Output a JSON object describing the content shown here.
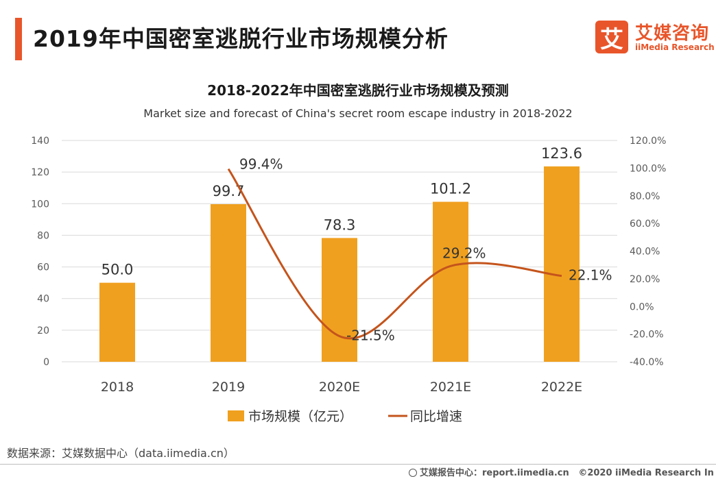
{
  "page": {
    "title": "2019年中国密室逃脱行业市场规模分析",
    "logo_mark": "艾",
    "logo_cn": "艾媒咨询",
    "logo_en": "iiMedia Research",
    "source": "数据来源：艾媒数据中心（data.iimedia.cn）",
    "footer_report": "艾媒报告中心：report.iimedia.cn",
    "footer_copyright": "©2020  iiMedia Research  In"
  },
  "colors": {
    "accent": "#e8552a",
    "bar": "#f0a01f",
    "line": "#c4541c",
    "grid": "#d9d9d9",
    "axis_text": "#595959"
  },
  "chart_data": {
    "type": "bar",
    "title": "2018-2022年中国密室逃脱行业市场规模及预测",
    "subtitle": "Market size and forecast of China's secret room escape industry in 2018-2022",
    "categories": [
      "2018",
      "2019",
      "2020E",
      "2021E",
      "2022E"
    ],
    "series": [
      {
        "name": "市场规模（亿元）",
        "type": "bar",
        "axis": "left",
        "values": [
          50.0,
          99.7,
          78.3,
          101.2,
          123.6
        ],
        "labels": [
          "50.0",
          "99.7",
          "78.3",
          "101.2",
          "123.6"
        ]
      },
      {
        "name": "同比增速",
        "type": "line",
        "axis": "right",
        "values": [
          null,
          99.4,
          -21.5,
          29.2,
          22.1
        ],
        "labels": [
          "",
          "99.4%",
          "-21.5%",
          "29.2%",
          "22.1%"
        ]
      }
    ],
    "y_left": {
      "min": 0,
      "max": 140,
      "ticks": [
        "0",
        "20",
        "40",
        "60",
        "80",
        "100",
        "120",
        "140"
      ]
    },
    "y_right": {
      "min": -40,
      "max": 120,
      "ticks": [
        "-40.0%",
        "-20.0%",
        "0.0%",
        "20.0%",
        "40.0%",
        "60.0%",
        "80.0%",
        "100.0%",
        "120.0%"
      ]
    },
    "grid": true,
    "legend_position": "bottom"
  }
}
